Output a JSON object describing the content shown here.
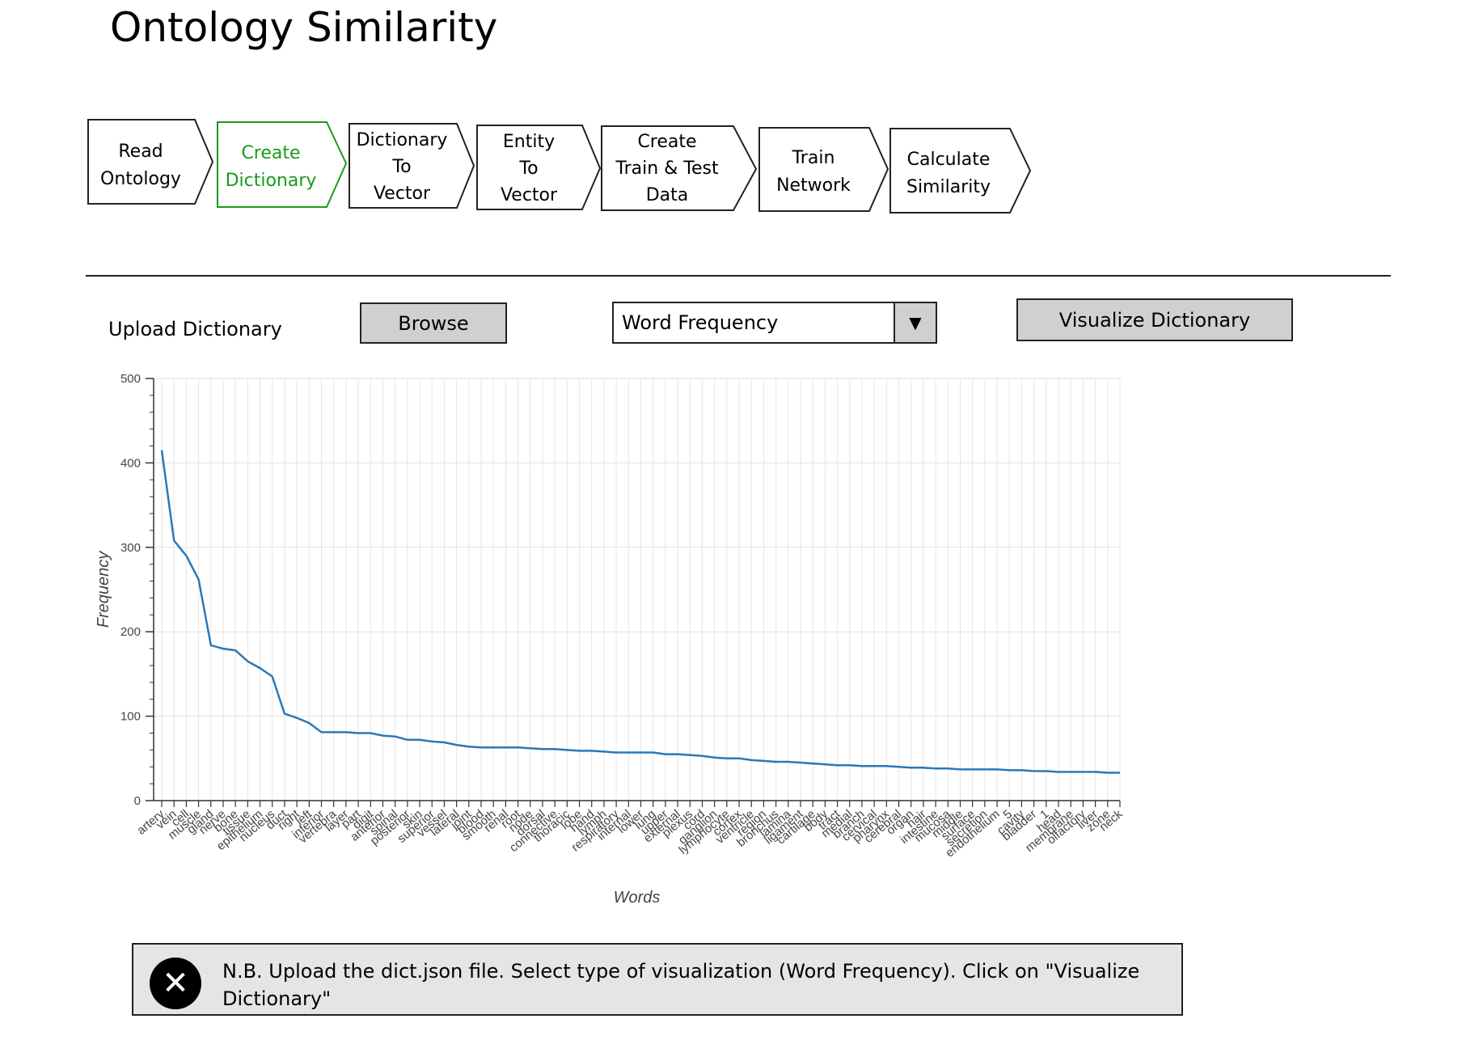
{
  "page": {
    "title": "Ontology Similarity"
  },
  "steps": [
    {
      "id": "read-ontology",
      "lines": [
        "Read",
        "Ontology"
      ],
      "active": false
    },
    {
      "id": "create-dictionary",
      "lines": [
        "Create",
        "Dictionary"
      ],
      "active": true
    },
    {
      "id": "dictionary-to-vector",
      "lines": [
        "Dictionary",
        "To",
        "Vector"
      ],
      "active": false
    },
    {
      "id": "entity-to-vector",
      "lines": [
        "Entity",
        "To",
        "Vector"
      ],
      "active": false
    },
    {
      "id": "create-train-test-data",
      "lines": [
        "Create",
        "Train & Test",
        "Data"
      ],
      "active": false
    },
    {
      "id": "train-network",
      "lines": [
        "Train",
        "Network"
      ],
      "active": false
    },
    {
      "id": "calculate-similarity",
      "lines": [
        "Calculate",
        "Similarity"
      ],
      "active": false
    }
  ],
  "colors": {
    "active_step": "#1a9a1a",
    "line": "#2b78b8",
    "button_bg": "#d0d0d0",
    "note_bg": "#e5e5e5"
  },
  "upload": {
    "label": "Upload Dictionary",
    "browse_label": "Browse",
    "select_value": "Word Frequency",
    "visualize_label": "Visualize Dictionary"
  },
  "chart_data": {
    "type": "line",
    "title": "",
    "xlabel": "Words",
    "ylabel": "Frequency",
    "ylim": [
      0,
      500
    ],
    "yticks": [
      0,
      100,
      200,
      300,
      400,
      500
    ],
    "grid": true,
    "categories": [
      "artery",
      "vein",
      "cell",
      "muscle",
      "gland",
      "nerve",
      "bone",
      "tissue",
      "epithelium",
      "nucleus",
      "duct",
      "right",
      "left",
      "inferior",
      "vertebra",
      "layer",
      "part",
      "digit",
      "anterior",
      "spinal",
      "posterior",
      "skin",
      "superior",
      "vessel",
      "lateral",
      "joint",
      "blood",
      "smooth",
      "renal",
      "root",
      "node",
      "dorsal",
      "connective",
      "thoracic",
      "lobe",
      "hand",
      "lymph",
      "respiratory",
      "internal",
      "lower",
      "lung",
      "upper",
      "external",
      "plexus",
      "cord",
      "ganglion",
      "lymphocyte",
      "cortex",
      "ventricle",
      "region",
      "bronchus",
      "lamina",
      "ligament",
      "cartilage",
      "body",
      "tract",
      "medial",
      "branch",
      "cervical",
      "pharynx",
      "cerebral",
      "organ",
      "hair",
      "intestine",
      "mucosa",
      "middle",
      "surface",
      "secretion",
      "endothelium",
      "5",
      "cavity",
      "bladder",
      "1",
      "head",
      "membrane",
      "olfactory",
      "liver",
      "zone",
      "neck"
    ],
    "series": [
      {
        "values": [
          415,
          308,
          290,
          262,
          184,
          180,
          178,
          165,
          157,
          147,
          103,
          98,
          92,
          81,
          81,
          81,
          80,
          80,
          77,
          76,
          72,
          72,
          70,
          69,
          66,
          64,
          63,
          63,
          63,
          63,
          62,
          61,
          61,
          60,
          59,
          59,
          58,
          57,
          57,
          57,
          57,
          55,
          55,
          54,
          53,
          51,
          50,
          50,
          48,
          47,
          46,
          46,
          45,
          44,
          43,
          42,
          42,
          41,
          41,
          41,
          40,
          39,
          39,
          38,
          38,
          37,
          37,
          37,
          37,
          36,
          36,
          35,
          35,
          34,
          34,
          34,
          34,
          33,
          33
        ]
      }
    ]
  },
  "note": {
    "icon": "close-icon",
    "text": "N.B. Upload the dict.json file. Select type of visualization (Word Frequency). Click on \"Visualize Dictionary\""
  }
}
